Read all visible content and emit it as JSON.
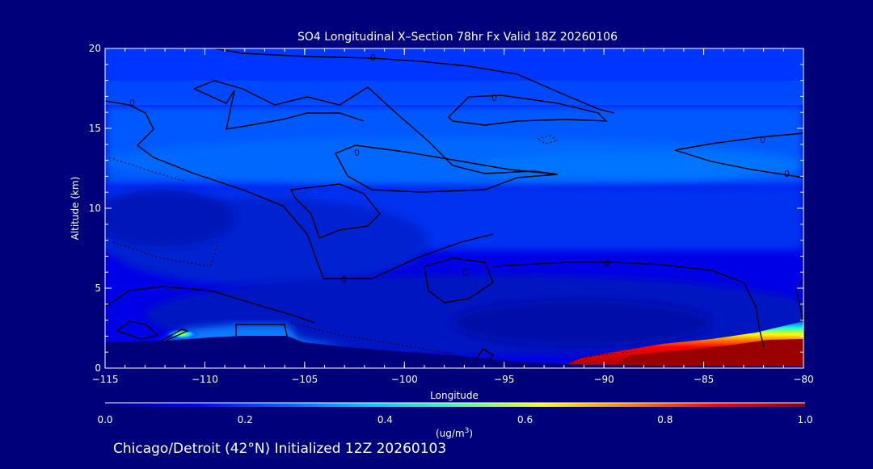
{
  "chart_data": {
    "type": "heatmap",
    "title": "SO4 Longitudinal X–Section 78hr  Fx Valid 18Z 20260106",
    "xlabel": "Longitude",
    "ylabel": "Altitude (km)",
    "xlim": [
      -115,
      -80
    ],
    "ylim": [
      0,
      20
    ],
    "x_ticks": [
      -115,
      -110,
      -105,
      -100,
      -95,
      -90,
      -85,
      -80
    ],
    "x_tick_labels": [
      "−115",
      "−110",
      "−105",
      "−100",
      "−95",
      "−90",
      "−85",
      "−80"
    ],
    "y_ticks": [
      0,
      5,
      10,
      15,
      20
    ],
    "y_tick_labels": [
      "0",
      "5",
      "10",
      "15",
      "20"
    ],
    "colorbar": {
      "min": 0.0,
      "max": 1.0,
      "ticks": [
        0.0,
        0.2,
        0.4,
        0.6,
        0.8,
        1.0
      ],
      "tick_labels": [
        "0.0",
        "0.2",
        "0.4",
        "0.6",
        "0.8",
        "1.0"
      ],
      "unit_label": "(ug/m",
      "unit_sup": "3",
      "unit_close": ")",
      "colors": [
        "#00007a",
        "#0000ff",
        "#0060ff",
        "#00c8ff",
        "#40ffb0",
        "#ffff00",
        "#ff8000",
        "#ff0000",
        "#900000"
      ]
    },
    "regions": [
      {
        "lon": [
          -115,
          -80
        ],
        "alt": [
          18,
          20
        ],
        "value": 0.05
      },
      {
        "lon": [
          -115,
          -80
        ],
        "alt": [
          11.5,
          15.5
        ],
        "value": 0.1
      },
      {
        "lon": [
          -115,
          -106
        ],
        "alt": [
          6.5,
          10.5
        ],
        "value": 0.0
      },
      {
        "lon": [
          -97,
          -85
        ],
        "alt": [
          2.5,
          5.0
        ],
        "value": 0.02
      },
      {
        "lon": [
          -110,
          -104
        ],
        "alt": [
          1.8,
          2.6
        ],
        "value": 0.15
      },
      {
        "lon": [
          -89,
          -80
        ],
        "alt": [
          0.1,
          1.6
        ],
        "value": 1.0
      }
    ],
    "contour_labels": [
      "0",
      "0",
      "0",
      "0",
      "0",
      "0",
      "0",
      "0",
      "0"
    ]
  },
  "footer": {
    "text": "Chicago/Detroit (42°N) Initialized 12Z 20260103"
  }
}
